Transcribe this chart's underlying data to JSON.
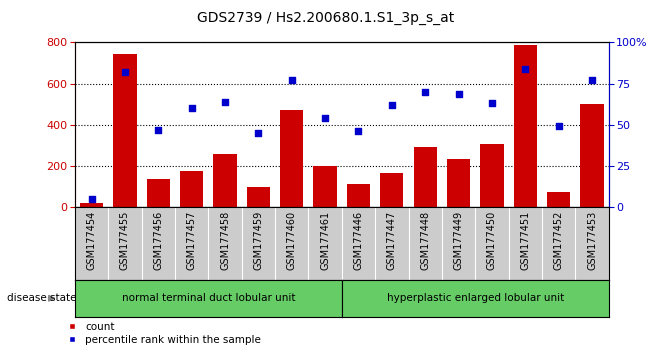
{
  "title": "GDS2739 / Hs2.200680.1.S1_3p_s_at",
  "samples": [
    "GSM177454",
    "GSM177455",
    "GSM177456",
    "GSM177457",
    "GSM177458",
    "GSM177459",
    "GSM177460",
    "GSM177461",
    "GSM177446",
    "GSM177447",
    "GSM177448",
    "GSM177449",
    "GSM177450",
    "GSM177451",
    "GSM177452",
    "GSM177453"
  ],
  "counts": [
    20,
    745,
    135,
    175,
    260,
    100,
    470,
    200,
    110,
    165,
    290,
    235,
    305,
    790,
    75,
    500
  ],
  "percentiles": [
    5,
    82,
    47,
    60,
    64,
    45,
    77,
    54,
    46,
    62,
    70,
    69,
    63,
    84,
    49,
    77
  ],
  "group1_label": "normal terminal duct lobular unit",
  "group2_label": "hyperplastic enlarged lobular unit",
  "group1_count": 8,
  "group2_count": 8,
  "bar_color": "#cc0000",
  "dot_color": "#0000cc",
  "ylim_left": [
    0,
    800
  ],
  "ylim_right": [
    0,
    100
  ],
  "yticks_left": [
    0,
    200,
    400,
    600,
    800
  ],
  "yticks_right": [
    0,
    25,
    50,
    75,
    100
  ],
  "yticklabels_right": [
    "0",
    "25",
    "50",
    "75",
    "100%"
  ],
  "legend_count_label": "count",
  "legend_pct_label": "percentile rank within the sample",
  "group1_color": "#66cc66",
  "group2_color": "#66cc66",
  "xlabel_disease": "disease state",
  "title_fontsize": 10,
  "axis_tick_fontsize": 7,
  "background_color": "#ffffff",
  "plot_bg_color": "#ffffff",
  "xticklabel_bg": "#cccccc"
}
